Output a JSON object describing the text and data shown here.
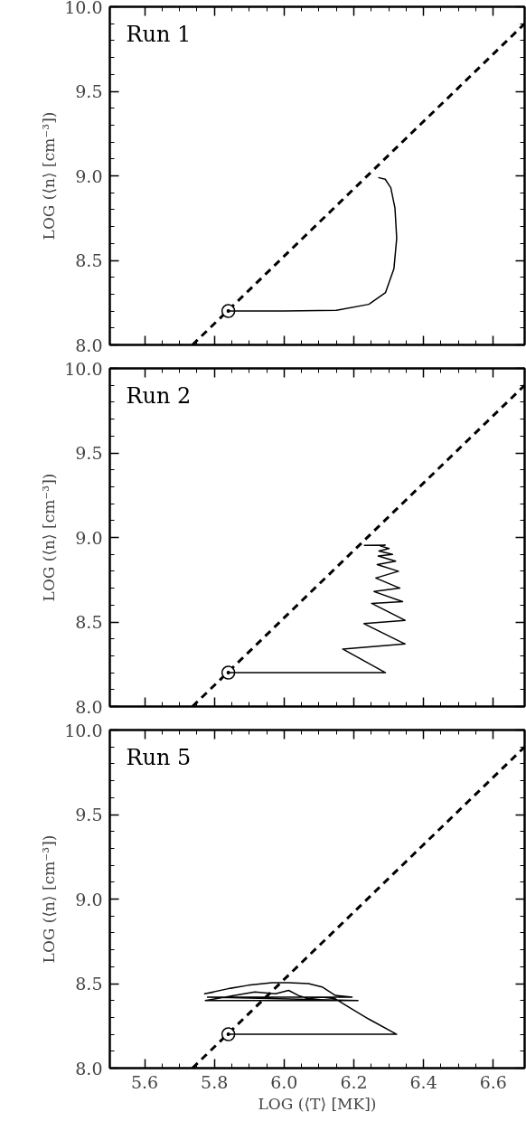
{
  "chart_data": [
    {
      "type": "line",
      "title": "Run 1",
      "ylabel": "LOG (⟨n⟩ [cm⁻³])",
      "xlim": [
        5.5,
        6.69
      ],
      "ylim": [
        8.0,
        10.0
      ],
      "xticks": [
        {
          "value": 5.6,
          "label": null
        },
        {
          "value": 5.8,
          "label": null
        },
        {
          "value": 6.0,
          "label": null
        },
        {
          "value": 6.2,
          "label": null
        },
        {
          "value": 6.4,
          "label": null
        },
        {
          "value": 6.6,
          "label": null
        }
      ],
      "yticks": [
        {
          "value": 8.0,
          "label": "8.0"
        },
        {
          "value": 8.5,
          "label": "8.5"
        },
        {
          "value": 9.0,
          "label": "9.0"
        },
        {
          "value": 9.5,
          "label": "9.5"
        },
        {
          "value": 10.0,
          "label": "10.0"
        }
      ],
      "tick_labels": "y",
      "series": [
        {
          "color": "#000000",
          "line_style": "dashed",
          "x": [
            5.737,
            6.69
          ],
          "values": [
            8.0,
            9.9
          ]
        },
        {
          "type": "scatter",
          "color": "#000000",
          "marker": "circle",
          "x": [
            5.84
          ],
          "values": [
            8.2
          ]
        },
        {
          "color": "#000000",
          "line_style": "solid",
          "x": [
            5.84,
            6.0,
            6.15,
            6.243,
            6.291,
            6.315,
            6.323,
            6.318,
            6.306,
            6.29,
            6.27
          ],
          "values": [
            8.2,
            8.2,
            8.205,
            8.24,
            8.31,
            8.45,
            8.63,
            8.81,
            8.93,
            8.98,
            8.99
          ]
        }
      ]
    },
    {
      "type": "line",
      "title": "Run 2",
      "ylabel": "LOG (⟨n⟩ [cm⁻³])",
      "xlim": [
        5.5,
        6.69
      ],
      "ylim": [
        8.0,
        10.0
      ],
      "xticks": [
        {
          "value": 5.6,
          "label": null
        },
        {
          "value": 5.8,
          "label": null
        },
        {
          "value": 6.0,
          "label": null
        },
        {
          "value": 6.2,
          "label": null
        },
        {
          "value": 6.4,
          "label": null
        },
        {
          "value": 6.6,
          "label": null
        }
      ],
      "yticks": [
        {
          "value": 8.0,
          "label": "8.0"
        },
        {
          "value": 8.5,
          "label": "8.5"
        },
        {
          "value": 9.0,
          "label": "9.0"
        },
        {
          "value": 9.5,
          "label": "9.5"
        },
        {
          "value": 10.0,
          "label": "10.0"
        }
      ],
      "tick_labels": "y",
      "series": [
        {
          "color": "#000000",
          "line_style": "dashed",
          "x": [
            5.737,
            6.69
          ],
          "values": [
            8.0,
            9.9
          ]
        },
        {
          "type": "scatter",
          "color": "#000000",
          "marker": "circle",
          "x": [
            5.84
          ],
          "values": [
            8.2
          ]
        },
        {
          "color": "#000000",
          "line_style": "solid",
          "x": [
            5.84,
            6.291,
            6.168,
            6.347,
            6.229,
            6.347,
            6.251,
            6.34,
            6.258,
            6.332,
            6.263,
            6.328,
            6.267,
            6.32,
            6.27,
            6.311,
            6.272,
            6.301,
            6.276,
            6.29,
            6.229
          ],
          "values": [
            8.2,
            8.2,
            8.34,
            8.37,
            8.49,
            8.51,
            8.61,
            8.62,
            8.68,
            8.7,
            8.76,
            8.8,
            8.84,
            8.86,
            8.89,
            8.9,
            8.92,
            8.935,
            8.95,
            8.955,
            8.953
          ]
        }
      ]
    },
    {
      "type": "line",
      "title": "Run 5",
      "xlabel": "LOG (⟨T⟩ [MK])",
      "ylabel": "LOG (⟨n⟩ [cm⁻³])",
      "xlim": [
        5.5,
        6.69
      ],
      "ylim": [
        8.0,
        10.0
      ],
      "xticks": [
        {
          "value": 5.6,
          "label": "5.6"
        },
        {
          "value": 5.8,
          "label": "5.8"
        },
        {
          "value": 6.0,
          "label": "6.0"
        },
        {
          "value": 6.2,
          "label": "6.2"
        },
        {
          "value": 6.4,
          "label": "6.4"
        },
        {
          "value": 6.6,
          "label": "6.6"
        }
      ],
      "yticks": [
        {
          "value": 8.0,
          "label": "8.0"
        },
        {
          "value": 8.5,
          "label": "8.5"
        },
        {
          "value": 9.0,
          "label": "9.0"
        },
        {
          "value": 9.5,
          "label": "9.5"
        },
        {
          "value": 10.0,
          "label": "10.0"
        }
      ],
      "series": [
        {
          "color": "#000000",
          "line_style": "dashed",
          "x": [
            5.737,
            6.69
          ],
          "values": [
            8.0,
            9.9
          ]
        },
        {
          "type": "scatter",
          "color": "#000000",
          "marker": "circle",
          "x": [
            5.84
          ],
          "values": [
            8.2
          ]
        },
        {
          "color": "#000000",
          "line_style": "solid",
          "x": [
            5.84,
            6.323,
            6.243,
            6.186,
            6.147,
            6.109,
            6.07,
            6.041,
            6.013,
            5.975,
            5.916,
            5.859,
            5.774,
            6.212,
            5.78,
            6.195,
            6.147,
            6.109,
            6.07,
            6.013,
            5.965,
            5.897,
            5.84,
            5.772,
            5.8
          ],
          "values": [
            8.2,
            8.2,
            8.29,
            8.36,
            8.41,
            8.42,
            8.41,
            8.43,
            8.46,
            8.44,
            8.45,
            8.43,
            8.4,
            8.4,
            8.42,
            8.42,
            8.43,
            8.48,
            8.5,
            8.505,
            8.505,
            8.49,
            8.47,
            8.44,
            8.45
          ]
        }
      ]
    }
  ]
}
